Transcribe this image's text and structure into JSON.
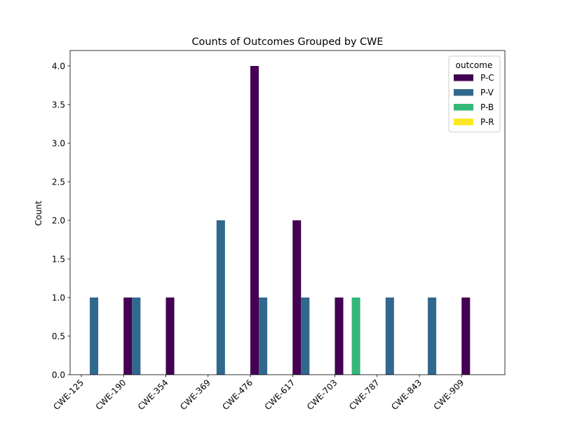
{
  "chart_data": {
    "type": "bar",
    "title": "Counts of Outcomes Grouped by CWE",
    "xlabel": "",
    "ylabel": "Count",
    "ylim": [
      0,
      4.2
    ],
    "yticks": [
      "0.0",
      "0.5",
      "1.0",
      "1.5",
      "2.0",
      "2.5",
      "3.0",
      "3.5",
      "4.0"
    ],
    "categories": [
      "CWE-125",
      "CWE-190",
      "CWE-354",
      "CWE-369",
      "CWE-476",
      "CWE-617",
      "CWE-703",
      "CWE-787",
      "CWE-843",
      "CWE-909"
    ],
    "legend": {
      "title": "outcome",
      "placement": "top-right"
    },
    "grid": false,
    "series": [
      {
        "name": "P-C",
        "color": "#440154",
        "values": [
          0,
          1,
          1,
          0,
          4,
          2,
          1,
          0,
          0,
          1
        ]
      },
      {
        "name": "P-V",
        "color": "#31688e",
        "values": [
          1,
          1,
          0,
          2,
          1,
          1,
          0,
          1,
          1,
          0
        ]
      },
      {
        "name": "P-B",
        "color": "#35b779",
        "values": [
          0,
          0,
          0,
          0,
          0,
          0,
          1,
          0,
          0,
          0
        ]
      },
      {
        "name": "P-R",
        "color": "#fde725",
        "values": [
          0,
          0,
          0,
          0,
          0,
          0,
          0,
          0,
          0,
          0
        ]
      }
    ]
  }
}
